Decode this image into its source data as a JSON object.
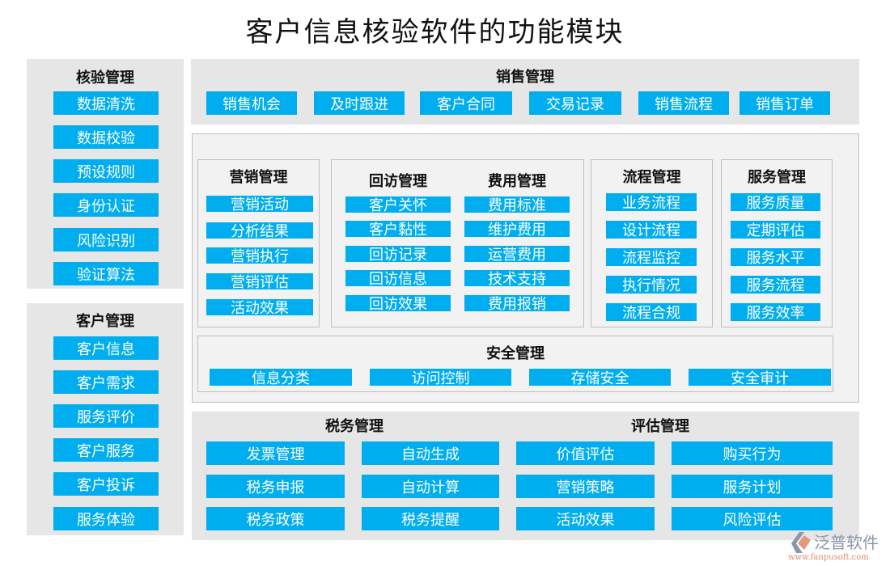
{
  "title": "客户信息核验软件的功能模块",
  "verify": {
    "title": "核验管理",
    "items": [
      "数据清洗",
      "数据校验",
      "预设规则",
      "身份认证",
      "风险识别",
      "验证算法"
    ]
  },
  "customer": {
    "title": "客户管理",
    "items": [
      "客户信息",
      "客户需求",
      "服务评价",
      "客户服务",
      "客户投诉",
      "服务体验"
    ]
  },
  "sales": {
    "title": "销售管理",
    "items": [
      "销售机会",
      "及时跟进",
      "客户合同",
      "交易记录",
      "销售流程",
      "销售订单"
    ]
  },
  "marketing": {
    "title": "营销管理",
    "items": [
      "营销活动",
      "分析结果",
      "营销执行",
      "营销评估",
      "活动效果"
    ]
  },
  "revisit": {
    "title": "回访管理",
    "items": [
      "客户关怀",
      "客户黏性",
      "回访记录",
      "回访信息",
      "回访效果"
    ]
  },
  "expense": {
    "title": "费用管理",
    "items": [
      "费用标准",
      "维护费用",
      "运营费用",
      "技术支持",
      "费用报销"
    ]
  },
  "process": {
    "title": "流程管理",
    "items": [
      "业务流程",
      "设计流程",
      "流程监控",
      "执行情况",
      "流程合规"
    ]
  },
  "service": {
    "title": "服务管理",
    "items": [
      "服务质量",
      "定期评估",
      "服务水平",
      "服务流程",
      "服务效率"
    ]
  },
  "security": {
    "title": "安全管理",
    "items": [
      "信息分类",
      "访问控制",
      "存储安全",
      "安全审计"
    ]
  },
  "tax": {
    "title": "税务管理",
    "items": [
      "发票管理",
      "自动生成",
      "税务申报",
      "自动计算",
      "税务政策",
      "税务提醒"
    ]
  },
  "evaluation": {
    "title": "评估管理",
    "items": [
      "价值评估",
      "购买行为",
      "营销策略",
      "服务计划",
      "活动效果",
      "风险评估"
    ]
  },
  "logo": {
    "name": "泛普软件",
    "url": "www.fanpusoft.com"
  },
  "colors": {
    "button": "#00aeef",
    "panel": "#e6e6e6"
  }
}
